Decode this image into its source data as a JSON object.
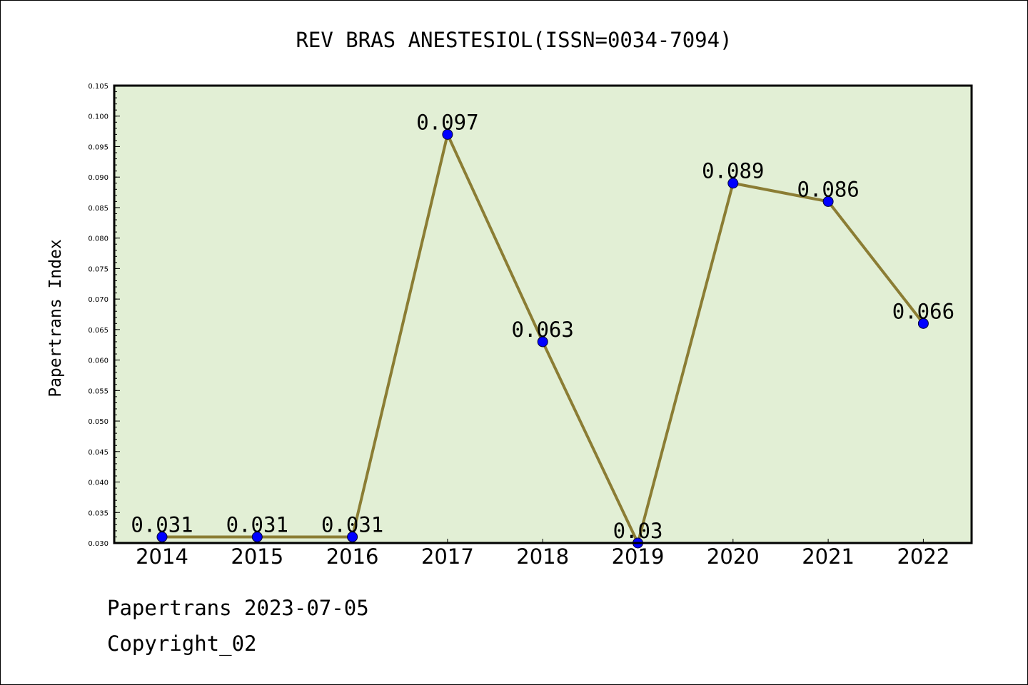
{
  "chart_data": {
    "type": "line",
    "title": "REV BRAS ANESTESIOL(ISSN=0034-7094)",
    "xlabel": "",
    "ylabel": "Papertrans Index",
    "categories": [
      "2014",
      "2015",
      "2016",
      "2017",
      "2018",
      "2019",
      "2020",
      "2021",
      "2022"
    ],
    "values": [
      0.031,
      0.031,
      0.031,
      0.097,
      0.063,
      0.03,
      0.089,
      0.086,
      0.066
    ],
    "data_labels": [
      "0.031",
      "0.031",
      "0.031",
      "0.097",
      "0.063",
      "0.03",
      "0.089",
      "0.086",
      "0.066"
    ],
    "ylim": [
      0.03,
      0.105
    ],
    "yticks": [
      "0.030",
      "0.035",
      "0.040",
      "0.045",
      "0.050",
      "0.055",
      "0.060",
      "0.065",
      "0.070",
      "0.075",
      "0.080",
      "0.085",
      "0.090",
      "0.095",
      "0.100",
      "0.105"
    ],
    "grid": false,
    "colors": {
      "plot_background": "#e2efd5",
      "line": "#8b7d34",
      "marker": "#0000ff"
    }
  },
  "footer": {
    "line1": "Papertrans 2023-07-05",
    "line2": "Copyright_02"
  }
}
